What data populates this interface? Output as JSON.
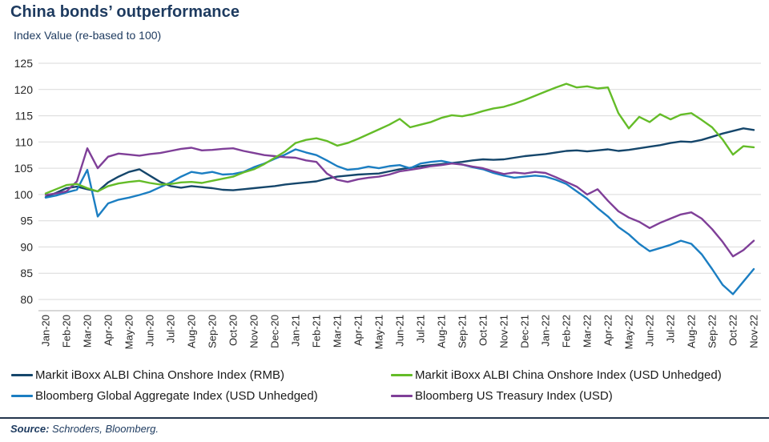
{
  "header": {
    "title": "China bonds’ outperformance",
    "subtitle": "Index Value (re-based to 100)"
  },
  "footer": {
    "source_label": "Source:",
    "source_text": " Schroders, Bloomberg."
  },
  "colors": {
    "title": "#1d3a5f",
    "grid": "#d9d9d9",
    "axis_line": "#bfbfbf",
    "axis_text": "#262626"
  },
  "chart_data": {
    "type": "line",
    "title": "China bonds’ outperformance",
    "ylabel": "Index Value (re-based to 100)",
    "ylim": [
      80,
      125
    ],
    "y_ticks": [
      80,
      85,
      90,
      95,
      100,
      105,
      110,
      115,
      120,
      125
    ],
    "grid": "horizontal",
    "legend_position": "bottom",
    "points_per_month": 2,
    "x_tick_labels": [
      "Jan-20",
      "Feb-20",
      "Mar-20",
      "Apr-20",
      "May-20",
      "Jun-20",
      "Jul-20",
      "Aug-20",
      "Sep-20",
      "Oct-20",
      "Nov-20",
      "Dec-20",
      "Jan-21",
      "Feb-21",
      "Mar-21",
      "Apr-21",
      "May-21",
      "Jun-21",
      "Jul-21",
      "Aug-21",
      "Sep-21",
      "Oct-21",
      "Nov-21",
      "Dec-21",
      "Jan-22",
      "Feb-22",
      "Mar-22",
      "Apr-22",
      "May-22",
      "Jun-22",
      "Jul-22",
      "Aug-22",
      "Sep-22",
      "Oct-22",
      "Nov-22"
    ],
    "series": [
      {
        "name": "Markit iBoxx ALBI China Onshore Index (RMB)",
        "color": "#15466b",
        "values": [
          99.5,
          100.3,
          101.2,
          101.5,
          101.0,
          100.6,
          102.3,
          103.4,
          104.3,
          104.8,
          103.6,
          102.4,
          101.6,
          101.3,
          101.6,
          101.4,
          101.2,
          100.9,
          100.8,
          101.0,
          101.2,
          101.4,
          101.6,
          101.9,
          102.1,
          102.3,
          102.5,
          103.0,
          103.4,
          103.6,
          103.8,
          103.9,
          104.0,
          104.4,
          104.8,
          105.1,
          105.4,
          105.6,
          105.8,
          106.0,
          106.2,
          106.5,
          106.7,
          106.6,
          106.7,
          107.0,
          107.3,
          107.5,
          107.7,
          108.0,
          108.3,
          108.4,
          108.2,
          108.4,
          108.6,
          108.3,
          108.5,
          108.8,
          109.1,
          109.4,
          109.8,
          110.1,
          110.0,
          110.4,
          111.0,
          111.6,
          112.1,
          112.6,
          112.3
        ]
      },
      {
        "name": "Markit iBoxx ALBI China Onshore Index (USD Unhedged)",
        "color": "#64bc28",
        "values": [
          100.2,
          101.0,
          101.8,
          102.0,
          101.2,
          100.6,
          101.6,
          102.1,
          102.4,
          102.6,
          102.2,
          101.9,
          102.0,
          102.3,
          102.4,
          102.2,
          102.6,
          103.0,
          103.4,
          104.2,
          104.8,
          105.8,
          107.0,
          108.2,
          109.8,
          110.4,
          110.7,
          110.2,
          109.3,
          109.8,
          110.6,
          111.5,
          112.4,
          113.3,
          114.4,
          112.8,
          113.3,
          113.8,
          114.6,
          115.1,
          114.9,
          115.3,
          115.9,
          116.4,
          116.7,
          117.3,
          118.0,
          118.8,
          119.6,
          120.4,
          121.1,
          120.4,
          120.6,
          120.2,
          120.4,
          115.5,
          112.6,
          114.8,
          113.8,
          115.3,
          114.3,
          115.2,
          115.5,
          114.2,
          112.8,
          110.5,
          107.6,
          109.2,
          109.0
        ]
      },
      {
        "name": "Bloomberg Global Aggregate Index (USD Unhedged)",
        "color": "#1b7ec2",
        "values": [
          99.4,
          99.8,
          100.4,
          100.9,
          104.7,
          95.8,
          98.3,
          99.0,
          99.4,
          99.9,
          100.5,
          101.4,
          102.3,
          103.4,
          104.3,
          104.0,
          104.3,
          103.8,
          103.9,
          104.3,
          105.2,
          105.9,
          106.8,
          107.6,
          108.6,
          108.0,
          107.5,
          106.5,
          105.4,
          104.7,
          104.9,
          105.3,
          105.0,
          105.4,
          105.6,
          105.0,
          105.9,
          106.2,
          106.4,
          106.0,
          105.7,
          105.2,
          104.8,
          104.1,
          103.6,
          103.2,
          103.4,
          103.6,
          103.4,
          102.8,
          102.0,
          100.6,
          99.2,
          97.4,
          95.8,
          93.8,
          92.4,
          90.6,
          89.2,
          89.8,
          90.4,
          91.2,
          90.6,
          88.6,
          85.8,
          82.8,
          81.0,
          83.4,
          85.8
        ]
      },
      {
        "name": "Bloomberg US Treasury Index (USD)",
        "color": "#7f3f98",
        "values": [
          99.9,
          100.2,
          100.6,
          102.5,
          108.8,
          105.0,
          107.2,
          107.8,
          107.6,
          107.4,
          107.7,
          107.9,
          108.3,
          108.7,
          108.9,
          108.4,
          108.5,
          108.7,
          108.8,
          108.3,
          107.9,
          107.5,
          107.3,
          107.1,
          107.0,
          106.5,
          106.2,
          104.0,
          102.8,
          102.4,
          102.9,
          103.2,
          103.4,
          103.8,
          104.4,
          104.7,
          105.0,
          105.4,
          105.6,
          105.9,
          105.7,
          105.3,
          105.0,
          104.4,
          103.9,
          104.2,
          104.0,
          104.3,
          104.1,
          103.3,
          102.4,
          101.5,
          100.0,
          101.0,
          98.8,
          96.8,
          95.6,
          94.8,
          93.6,
          94.6,
          95.4,
          96.2,
          96.6,
          95.4,
          93.4,
          91.0,
          88.2,
          89.4,
          91.2
        ]
      }
    ]
  }
}
